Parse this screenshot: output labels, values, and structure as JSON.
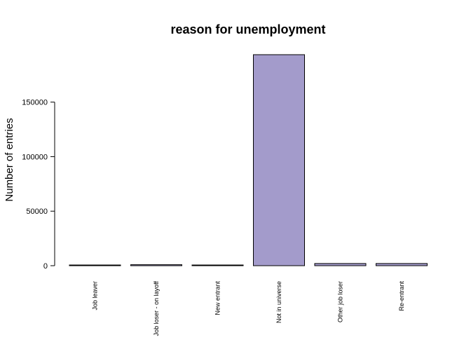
{
  "chart_data": {
    "type": "bar",
    "title": "reason for unemployment",
    "xlabel": "",
    "ylabel": "Number of entries",
    "categories": [
      "Job leaver",
      "Job loser - on layoff",
      "New entrant",
      "Not in universe",
      "Other job loser",
      "Re-entrant"
    ],
    "values": [
      600,
      900,
      450,
      193500,
      2000,
      2000
    ],
    "ylim": [
      0,
      193500
    ],
    "yticks": [
      0,
      50000,
      100000,
      150000
    ],
    "ytick_labels": [
      "0",
      "50000",
      "100000",
      "150000"
    ],
    "bar_color": "#a39bcb",
    "grid": false,
    "legend": "none"
  }
}
